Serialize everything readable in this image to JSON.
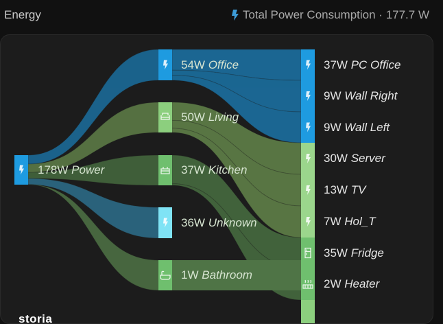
{
  "header": {
    "title": "Energy",
    "total_label": "Total Power Consumption · 177.7 W",
    "total_icon": "lightning-icon"
  },
  "colors": {
    "blue": "#1e9be0",
    "green": "#8ccf7e",
    "cyan": "#7fe3f5",
    "green_dark": "#6fbf6e"
  },
  "nodes": [
    {
      "id": "power",
      "value": "178W",
      "name": "Power",
      "icon": "lightning-icon",
      "color": "#1e9be0"
    },
    {
      "id": "office",
      "value": "54W",
      "name": "Office",
      "icon": "lightning-icon",
      "color": "#1e9be0"
    },
    {
      "id": "living",
      "value": "50W",
      "name": "Living",
      "icon": "sofa-icon",
      "color": "#8ccf7e"
    },
    {
      "id": "kitchen",
      "value": "37W",
      "name": "Kitchen",
      "icon": "stove-icon",
      "color": "#6fbf6e"
    },
    {
      "id": "unknown",
      "value": "36W",
      "name": "Unknown",
      "icon": "lightning-icon",
      "color": "#7fe3f5"
    },
    {
      "id": "bathroom",
      "value": "1W",
      "name": "Bathroom",
      "icon": "bathtub-icon",
      "color": "#6fbf6e"
    },
    {
      "id": "pc",
      "value": "37W",
      "name": "PC Office",
      "icon": "lightning-icon",
      "color": "#1e9be0"
    },
    {
      "id": "wallright",
      "value": "9W",
      "name": "Wall Right",
      "icon": "lightning-icon",
      "color": "#1e9be0"
    },
    {
      "id": "wallleft",
      "value": "9W",
      "name": "Wall Left",
      "icon": "lightning-icon",
      "color": "#1e9be0"
    },
    {
      "id": "server",
      "value": "30W",
      "name": "Server",
      "icon": "lightning-icon",
      "color": "#9bd68c"
    },
    {
      "id": "tv",
      "value": "13W",
      "name": "TV",
      "icon": "lightning-icon",
      "color": "#9bd68c"
    },
    {
      "id": "holt",
      "value": "7W",
      "name": "Hol_T",
      "icon": "lightning-icon",
      "color": "#9bd68c"
    },
    {
      "id": "fridge",
      "value": "35W",
      "name": "Fridge",
      "icon": "fridge-icon",
      "color": "#6fbf6e"
    },
    {
      "id": "heater",
      "value": "2W",
      "name": "Heater",
      "icon": "radiator-icon",
      "color": "#6fbf6e"
    }
  ],
  "flows": [
    {
      "source": "power",
      "target": "office",
      "value": 54
    },
    {
      "source": "power",
      "target": "living",
      "value": 50
    },
    {
      "source": "power",
      "target": "kitchen",
      "value": 37
    },
    {
      "source": "power",
      "target": "unknown",
      "value": 36
    },
    {
      "source": "power",
      "target": "bathroom",
      "value": 1
    },
    {
      "source": "office",
      "target": "pc",
      "value": 37
    },
    {
      "source": "office",
      "target": "wallright",
      "value": 9
    },
    {
      "source": "office",
      "target": "wallleft",
      "value": 9
    },
    {
      "source": "living",
      "target": "server",
      "value": 30
    },
    {
      "source": "living",
      "target": "tv",
      "value": 13
    },
    {
      "source": "living",
      "target": "holt",
      "value": 7
    },
    {
      "source": "kitchen",
      "target": "fridge",
      "value": 35
    },
    {
      "source": "kitchen",
      "target": "heater",
      "value": 2
    }
  ],
  "logo": "storia"
}
